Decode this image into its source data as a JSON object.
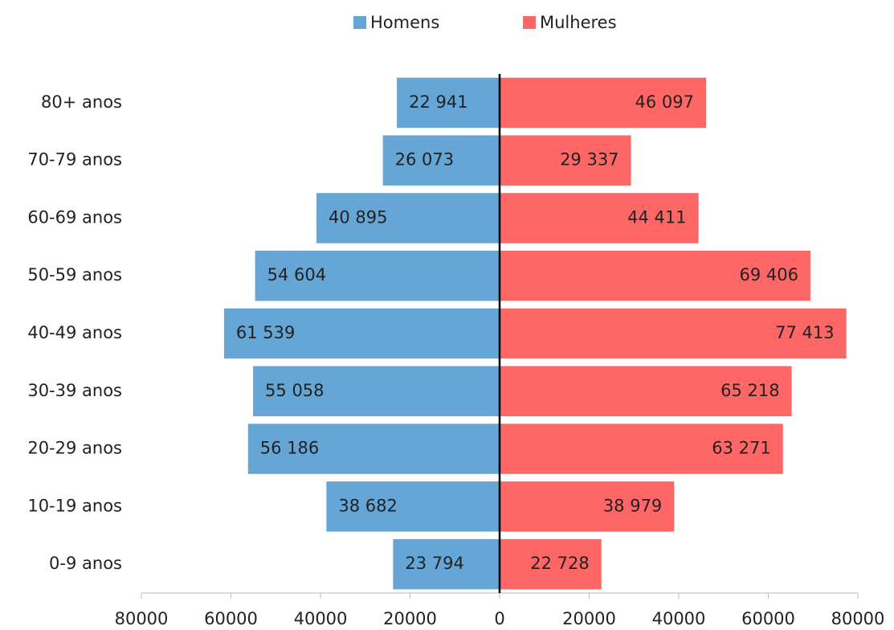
{
  "chart_data": {
    "type": "pyramid",
    "categories": [
      "0-9 anos",
      "10-19 anos",
      "20-29 anos",
      "30-39 anos",
      "40-49 anos",
      "50-59 anos",
      "60-69 anos",
      "70-79 anos",
      "80+ anos"
    ],
    "series": [
      {
        "name": "Homens",
        "color": "#66a6d6",
        "values": [
          -23794,
          -38682,
          -56186,
          -55058,
          -61539,
          -54604,
          -40895,
          -26073,
          -22941
        ],
        "value_labels": [
          "23 794",
          "38 682",
          "56 186",
          "55 058",
          "61 539",
          "54 604",
          "40 895",
          "26 073",
          "22 941"
        ]
      },
      {
        "name": "Mulheres",
        "color": "#ff6666",
        "values": [
          22728,
          38979,
          63271,
          65218,
          77413,
          69406,
          44411,
          29337,
          46097
        ],
        "value_labels": [
          "22 728",
          "38 979",
          "63 271",
          "65 218",
          "77 413",
          "69 406",
          "44 411",
          "29 337",
          "46 097"
        ]
      }
    ],
    "xlim": [
      -80000,
      80000
    ],
    "xticks": [
      {
        "value": -80000,
        "label": "80000"
      },
      {
        "value": -60000,
        "label": "60000"
      },
      {
        "value": -40000,
        "label": "40000"
      },
      {
        "value": -20000,
        "label": "20000"
      },
      0,
      20000,
      40000,
      60000,
      80000
    ],
    "legend": "top"
  }
}
